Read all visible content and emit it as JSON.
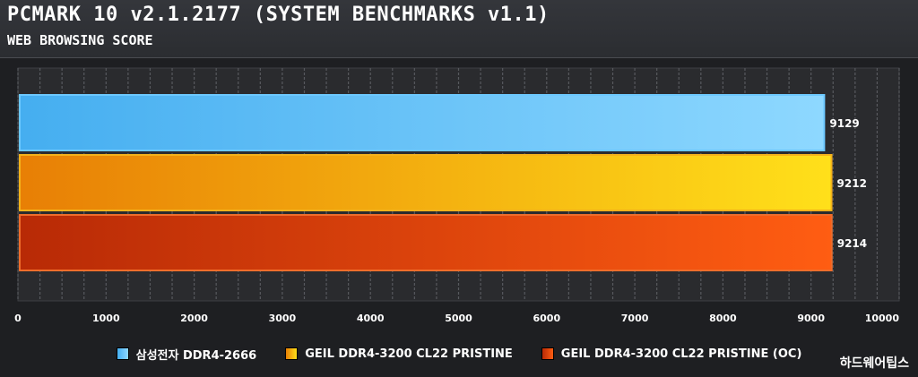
{
  "header": {
    "title": "PCMARK 10 v2.1.2177 (SYSTEM BENCHMARKS v1.1)",
    "subtitle": "WEB BROWSING SCORE"
  },
  "watermark": "하드웨어팁스",
  "colors": {
    "background": "#1e1f22",
    "plot_bg": "#2a2b2e",
    "grid": "#57595e"
  },
  "chart_data": {
    "type": "bar",
    "orientation": "horizontal",
    "title": "PCMARK 10 v2.1.2177 (SYSTEM BENCHMARKS v1.1)",
    "subtitle": "WEB BROWSING SCORE",
    "series": [
      {
        "name": "삼성전자 DDR4-2666",
        "value": 9129,
        "color": "#45aef0",
        "colorEnd": "#8ed8ff",
        "border": "#6cc8ff"
      },
      {
        "name": "GEIL DDR4-3200 CL22 PRISTINE",
        "value": 9212,
        "color": "#e87f05",
        "colorEnd": "#ffe01a",
        "border": "#f4b21b"
      },
      {
        "name": "GEIL DDR4-3200 CL22 PRISTINE (OC)",
        "value": 9214,
        "color": "#b82a06",
        "colorEnd": "#ff5d12",
        "border": "#ef6d2b"
      }
    ],
    "xlim": [
      0,
      10000
    ],
    "xticks": [
      "0",
      "1000",
      "2000",
      "3000",
      "4000",
      "5000",
      "6000",
      "7000",
      "8000",
      "9000",
      "10000"
    ],
    "grid": true,
    "legend_position": "bottom"
  }
}
